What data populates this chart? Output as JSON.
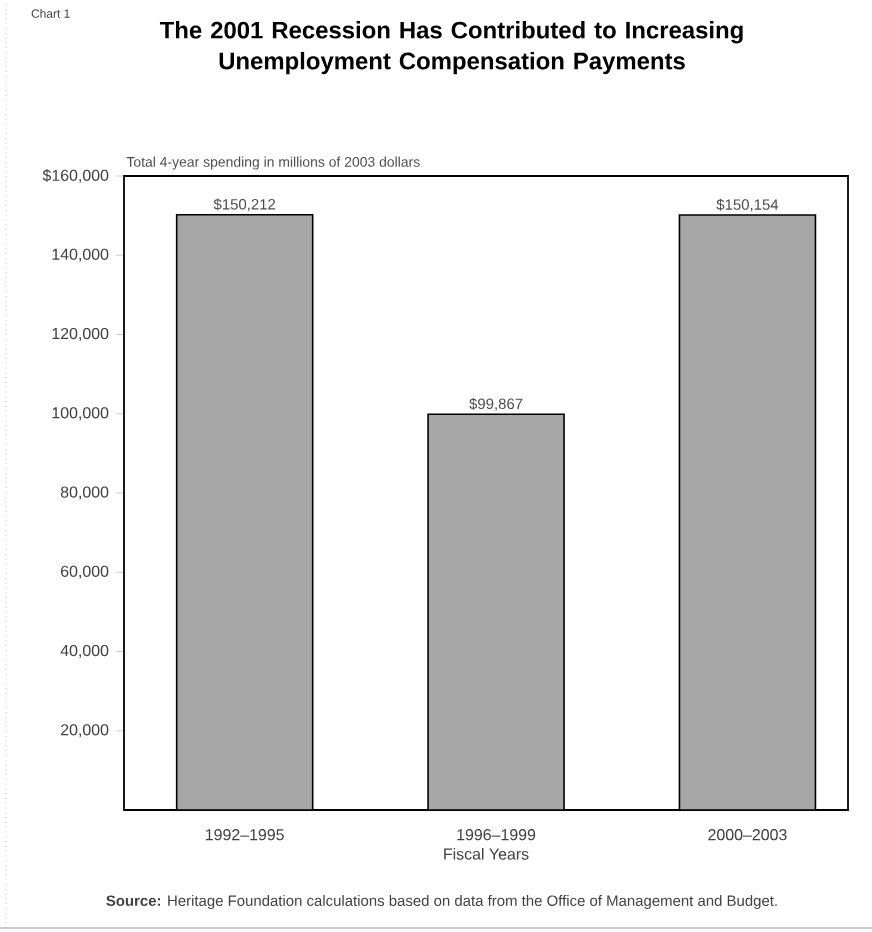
{
  "chart_data": {
    "type": "bar",
    "title": "The 2001 Recession Has Contributed to Increasing Unemployment Compensation Payments",
    "subtitle": "Total 4-year spending in millions of 2003 dollars",
    "xlabel": "Fiscal Years",
    "categories": [
      "1992–1995",
      "1996–1999",
      "2000–2003"
    ],
    "values": [
      150212,
      99867,
      150154
    ],
    "value_labels": [
      "$150,212",
      "$99,867",
      "$150,154"
    ],
    "color": "#a6a6a6",
    "ylim": [
      0,
      160000
    ],
    "yticks": [
      {
        "value": 20000,
        "label": "20,000"
      },
      {
        "value": 40000,
        "label": "40,000"
      },
      {
        "value": 60000,
        "label": "60,000"
      },
      {
        "value": 80000,
        "label": "80,000"
      },
      {
        "value": 100000,
        "label": "100,000"
      },
      {
        "value": 120000,
        "label": "120,000"
      },
      {
        "value": 140000,
        "label": "140,000"
      },
      {
        "value": 160000,
        "label": "$160,000"
      }
    ],
    "annotations": [
      "**Source:** Heritage Foundation calculations based on data from the Office of Management and Budget.",
      "Chart 1"
    ]
  }
}
